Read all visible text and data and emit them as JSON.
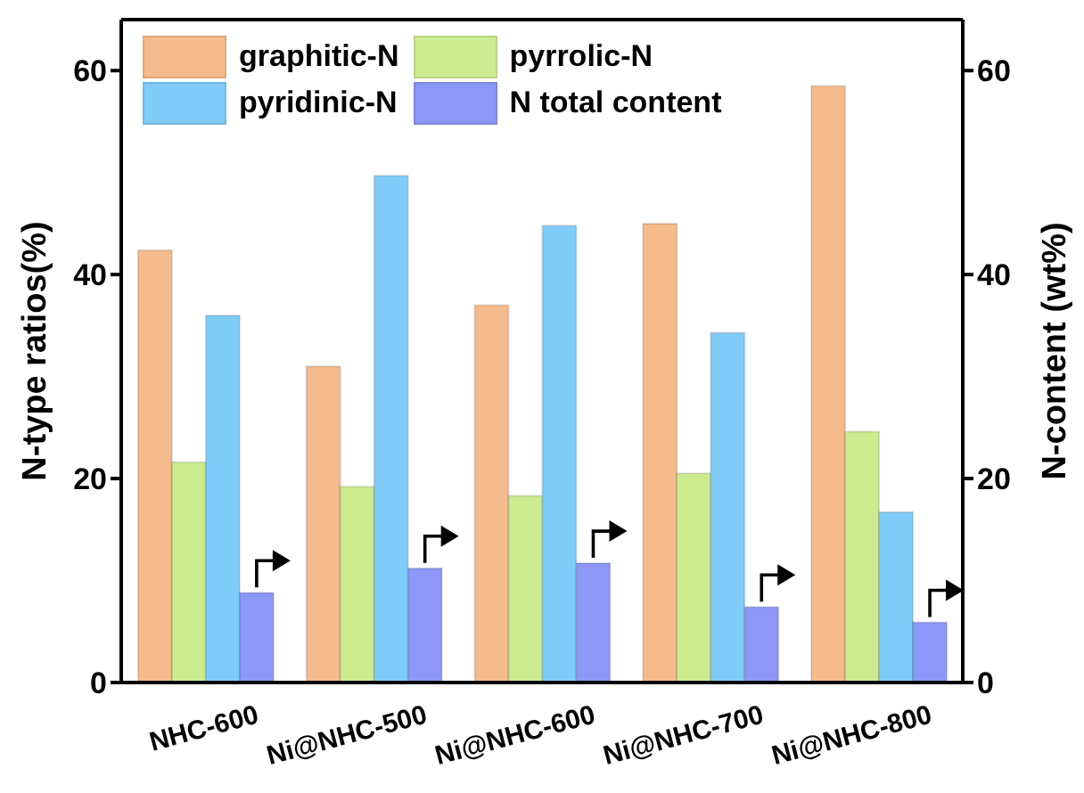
{
  "chart_data": {
    "type": "bar",
    "categories": [
      "NHC-600",
      "Ni@NHC-500",
      "Ni@NHC-600",
      "Ni@NHC-700",
      "Ni@NHC-800"
    ],
    "ylabel": "N-type ratios(%)",
    "y2label": "N-content (wt%)",
    "ylim": [
      0,
      65
    ],
    "yticks": [
      0,
      20,
      40,
      60
    ],
    "y2lim": [
      0,
      65
    ],
    "y2ticks": [
      0,
      20,
      40,
      60
    ],
    "legend": "top left",
    "series": [
      {
        "name": "graphitic-N",
        "color": "#f5bb8c",
        "values": [
          42.4,
          31,
          37,
          45,
          58.5
        ]
      },
      {
        "name": "pyrrolic-N",
        "color": "#cdec90",
        "values": [
          21.6,
          19.2,
          18.3,
          20.5,
          24.6
        ]
      },
      {
        "name": "pyridinic-N",
        "color": "#80ccf9",
        "values": [
          36,
          49.7,
          44.8,
          34.3,
          16.7
        ]
      },
      {
        "name": "N total content",
        "color": "#8c97f7",
        "values": [
          8.8,
          11.2,
          11.7,
          7.4,
          5.9
        ],
        "axis": "y2"
      }
    ]
  }
}
